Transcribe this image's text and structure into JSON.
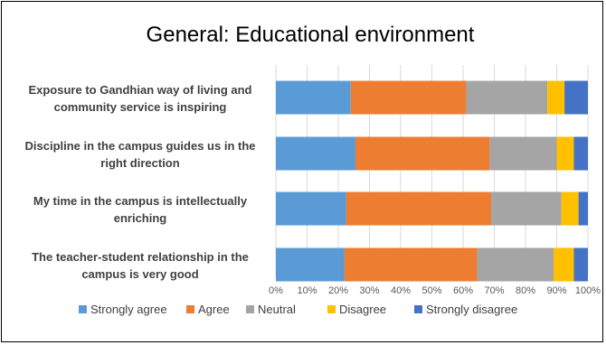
{
  "chart_data": {
    "type": "bar",
    "orientation": "horizontal",
    "stacked": true,
    "percent_stacked": true,
    "title": "General: Educational environment",
    "categories": [
      [
        "Exposure to Gandhian way of living and",
        "community service is inspiring"
      ],
      [
        "Discipline in the campus guides us in the",
        "right direction"
      ],
      [
        "My time in the campus is intellectually",
        "enriching"
      ],
      [
        "The teacher-student relationship in the",
        "campus is very good"
      ]
    ],
    "series": [
      {
        "name": "Strongly agree",
        "color": "#5B9BD5",
        "values": [
          24,
          25.5,
          22.5,
          22
        ]
      },
      {
        "name": "Agree",
        "color": "#ED7D31",
        "values": [
          37,
          43,
          46.5,
          42.5
        ]
      },
      {
        "name": "Neutral",
        "color": "#A5A5A5",
        "values": [
          26,
          21.5,
          22.5,
          24.5
        ]
      },
      {
        "name": "Disagree",
        "color": "#FFC000",
        "values": [
          5.5,
          5.5,
          5.5,
          6.5
        ]
      },
      {
        "name": "Strongly disagree",
        "color": "#4472C4",
        "values": [
          7.5,
          4.5,
          3,
          4.5
        ]
      }
    ],
    "xlim": [
      0,
      100
    ],
    "xticks": [
      "0%",
      "10%",
      "20%",
      "30%",
      "40%",
      "50%",
      "60%",
      "70%",
      "80%",
      "90%",
      "100%"
    ],
    "grid": true,
    "legend_position": "bottom"
  }
}
